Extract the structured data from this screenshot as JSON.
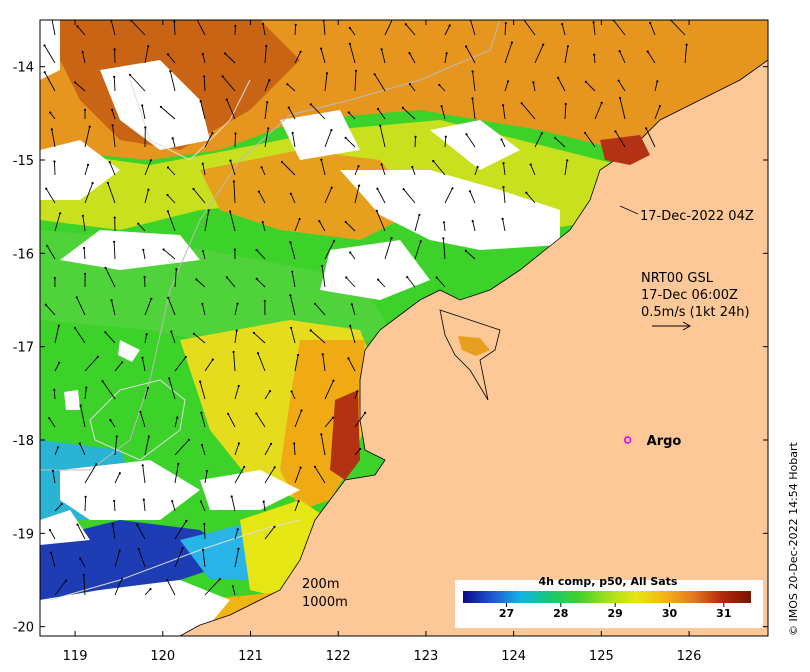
{
  "map": {
    "type": "sea-surface-temperature",
    "x_range": [
      118.6,
      126.9
    ],
    "y_range": [
      -20.1,
      -13.5
    ],
    "x_ticks": [
      {
        "value": 119,
        "label": "119"
      },
      {
        "value": 120,
        "label": "120"
      },
      {
        "value": 121,
        "label": "121"
      },
      {
        "value": 122,
        "label": "122"
      },
      {
        "value": 123,
        "label": "123"
      },
      {
        "value": 124,
        "label": "124"
      },
      {
        "value": 125,
        "label": "125"
      },
      {
        "value": 126,
        "label": "126"
      }
    ],
    "y_ticks": [
      {
        "value": -14,
        "label": "-14"
      },
      {
        "value": -15,
        "label": "-15"
      },
      {
        "value": -16,
        "label": "-16"
      },
      {
        "value": -17,
        "label": "-17"
      },
      {
        "value": -18,
        "label": "-18"
      },
      {
        "value": -19,
        "label": "-19"
      },
      {
        "value": -20,
        "label": "-20"
      }
    ]
  },
  "annotations": {
    "timestamp": "17-Dec-2022 04Z",
    "current_source": "NRT00 GSL",
    "current_time": "17-Dec 06:00Z",
    "current_scale": "0.5m/s (1kt 24h)",
    "contour_200": "200m",
    "contour_1000": "1000m"
  },
  "argo": {
    "label": "Argo",
    "lon": 125.3,
    "lat": -18.0
  },
  "colorbar": {
    "title": "4h comp, p50, All Sats",
    "range": [
      26.2,
      31.5
    ],
    "ticks": [
      {
        "value": 27,
        "label": "27"
      },
      {
        "value": 28,
        "label": "28"
      },
      {
        "value": 29,
        "label": "29"
      },
      {
        "value": 30,
        "label": "30"
      },
      {
        "value": 31,
        "label": "31"
      }
    ],
    "stops": [
      "#0a0a8c",
      "#1f55d2",
      "#12b4e6",
      "#18c878",
      "#3cd22a",
      "#a0e01e",
      "#e6e614",
      "#f5b414",
      "#e6781e",
      "#b4280a",
      "#781400"
    ]
  },
  "colors": {
    "land": "#fcc898",
    "cloud": "#ffffff"
  },
  "credit": "© IMOS 20-Dec-2022 14:54 Hobart"
}
